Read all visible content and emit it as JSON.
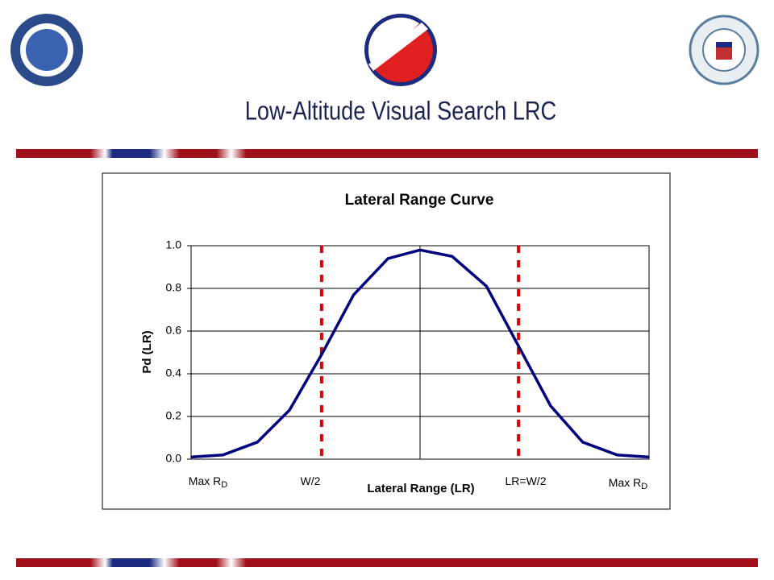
{
  "slide_title": "Low-Altitude Visual Search LRC",
  "chart_data": {
    "type": "line",
    "title": "Lateral Range Curve",
    "y_label": "Pd (LR)",
    "x_label": "Lateral Range (LR)",
    "x_annotations": [
      {
        "text": "Max R",
        "sub": "D"
      },
      {
        "text": "W/2"
      },
      {
        "text": "LR=W/2"
      },
      {
        "text": "Max R",
        "sub": "D"
      }
    ],
    "x": [
      -1,
      -0.86,
      -0.71,
      -0.57,
      -0.43,
      -0.29,
      -0.14,
      0,
      0.14,
      0.29,
      0.43,
      0.57,
      0.71,
      0.86,
      1
    ],
    "series": [
      {
        "name": "Pd",
        "color": "#000080",
        "values": [
          0.01,
          0.02,
          0.08,
          0.23,
          0.49,
          0.77,
          0.94,
          0.98,
          0.95,
          0.81,
          0.53,
          0.25,
          0.08,
          0.02,
          0.01
        ]
      }
    ],
    "vlines": [
      -0.43,
      0.43
    ],
    "vline_color": "#e00000",
    "xlim": [
      -1,
      1
    ],
    "ylim": [
      0,
      1
    ],
    "yticks": [
      {
        "value": 0,
        "label": "0.0"
      },
      0.2,
      0.4,
      0.6,
      0.8,
      {
        "value": 1,
        "label": "1.0"
      }
    ],
    "grid": true
  }
}
